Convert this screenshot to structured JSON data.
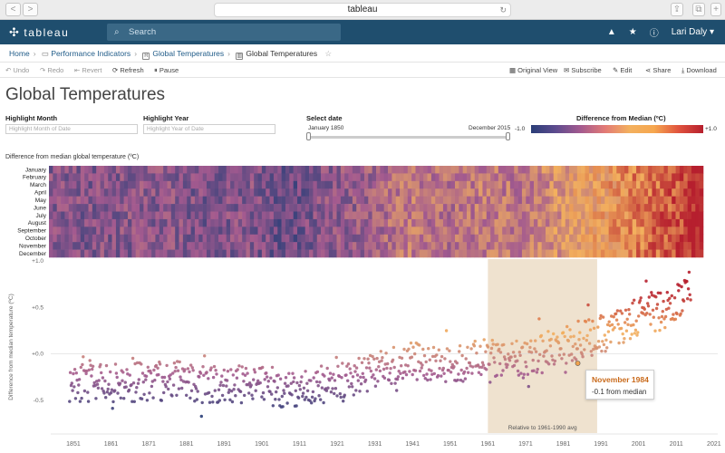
{
  "browser": {
    "url": "tableau",
    "back": "<",
    "fwd": ">"
  },
  "topbar": {
    "logo": "tableau",
    "search_placeholder": "Search",
    "user": "Lari Daly"
  },
  "breadcrumb": {
    "home": "Home",
    "project": "Performance Indicators",
    "workbook": "Global Temperatures",
    "view": "Global Temperatures"
  },
  "toolbar": {
    "undo": "Undo",
    "redo": "Redo",
    "revert": "Revert",
    "refresh": "Refresh",
    "pause": "Pause",
    "original_view": "Original View",
    "subscribe": "Subscribe",
    "edit": "Edit",
    "share": "Share",
    "download": "Download"
  },
  "page": {
    "title": "Global Temperatures",
    "highlight_month_label": "Highlight Month",
    "highlight_month_placeholder": "Highlight Month of Date",
    "highlight_year_label": "Highlight Year",
    "highlight_year_placeholder": "Highlight Year of Date",
    "select_date_label": "Select date",
    "date_start": "January 1850",
    "date_end": "December 2015",
    "legend_title": "Difference from Median (ºC)",
    "legend_min": "-1.0",
    "legend_max": "+1.0",
    "heatmap_title": "Difference from median global temperature (ºC)"
  },
  "tooltip": {
    "title": "November 1984",
    "body": "-0.1 from median"
  },
  "chart_data": [
    {
      "type": "heatmap",
      "title": "Difference from median global temperature (ºC)",
      "rows": [
        "January",
        "February",
        "March",
        "April",
        "May",
        "June",
        "July",
        "August",
        "September",
        "October",
        "November",
        "December"
      ],
      "x_range": [
        1850,
        2015
      ],
      "color_scale": {
        "min": -1.0,
        "max": 1.0,
        "colors": [
          "#2a3e78",
          "#a35a8f",
          "#f3b05e",
          "#b61f2e"
        ]
      }
    },
    {
      "type": "scatter",
      "ylabel": "Difference from median temperature (ºC)",
      "yticks": [
        "+1.0",
        "+0.5",
        "+0.0",
        "-0.5"
      ],
      "xticks": [
        "1851",
        "1861",
        "1871",
        "1881",
        "1891",
        "1901",
        "1911",
        "1921",
        "1931",
        "1941",
        "1951",
        "1961",
        "1971",
        "1981",
        "1991",
        "2001",
        "2011",
        "2021"
      ],
      "ylim": [
        -0.85,
        1.0
      ],
      "xlim": [
        1845,
        2022
      ],
      "reference_band": {
        "label": "Relative to 1961-1990 avg",
        "from": 1961,
        "to": 1990
      },
      "trend": [
        {
          "year": 1850,
          "value": -0.3
        },
        {
          "year": 1860,
          "value": -0.32
        },
        {
          "year": 1870,
          "value": -0.3
        },
        {
          "year": 1880,
          "value": -0.28
        },
        {
          "year": 1890,
          "value": -0.35
        },
        {
          "year": 1900,
          "value": -0.3
        },
        {
          "year": 1910,
          "value": -0.42
        },
        {
          "year": 1920,
          "value": -0.28
        },
        {
          "year": 1930,
          "value": -0.22
        },
        {
          "year": 1940,
          "value": -0.05
        },
        {
          "year": 1950,
          "value": -0.12
        },
        {
          "year": 1960,
          "value": -0.05
        },
        {
          "year": 1970,
          "value": -0.08
        },
        {
          "year": 1980,
          "value": 0.08
        },
        {
          "year": 1990,
          "value": 0.2
        },
        {
          "year": 2000,
          "value": 0.38
        },
        {
          "year": 2010,
          "value": 0.5
        },
        {
          "year": 2015,
          "value": 0.7
        }
      ],
      "highlight_point": {
        "label": "November 1984",
        "value": -0.1
      }
    }
  ],
  "colors": {
    "brand_bar": "#1f4e6e",
    "band": "#efe2cf"
  }
}
